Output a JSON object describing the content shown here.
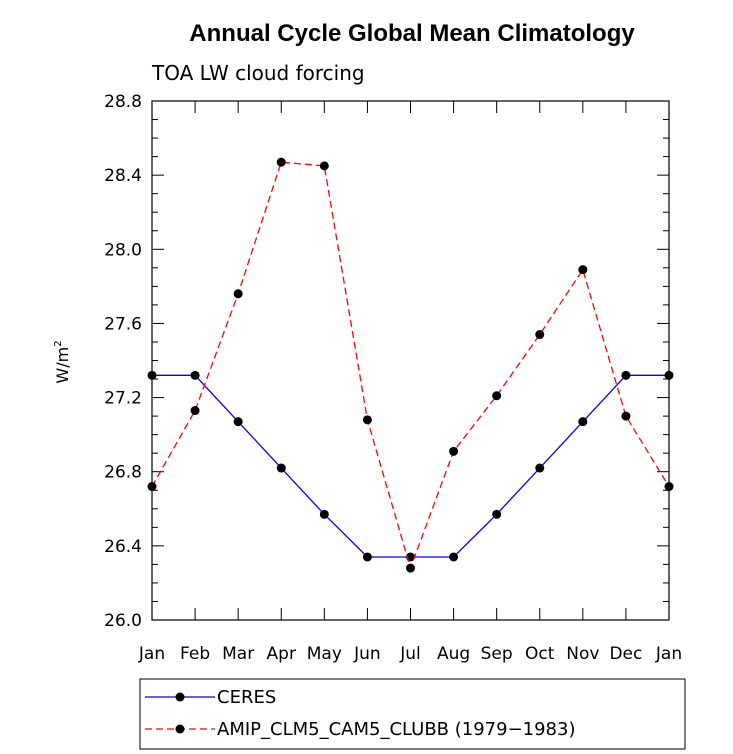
{
  "chart_data": {
    "type": "line",
    "title": "Annual Cycle Global Mean Climatology",
    "subtitle": "TOA LW cloud forcing",
    "xlabel": "",
    "ylabel": "W/m",
    "ylabel_superscript": "2",
    "categories": [
      "Jan",
      "Feb",
      "Mar",
      "Apr",
      "May",
      "Jun",
      "Jul",
      "Aug",
      "Sep",
      "Oct",
      "Nov",
      "Dec",
      "Jan"
    ],
    "ylim": [
      26.0,
      28.8
    ],
    "yticks": [
      "26.0",
      "26.4",
      "26.8",
      "27.2",
      "27.6",
      "28.0",
      "28.4",
      "28.8"
    ],
    "series": [
      {
        "name": "CERES",
        "color": "#0000ff",
        "dash": "solid",
        "values": [
          27.32,
          27.32,
          27.07,
          26.82,
          26.57,
          26.34,
          26.34,
          26.34,
          26.57,
          26.82,
          27.07,
          27.32,
          27.32
        ]
      },
      {
        "name": "AMIP_CLM5_CAM5_CLUBB (1979−1983)",
        "color": "#ff0000",
        "dash": "dashed",
        "values": [
          26.72,
          27.13,
          27.76,
          28.47,
          28.45,
          27.08,
          26.28,
          26.91,
          27.21,
          27.54,
          27.89,
          27.1,
          26.72
        ]
      }
    ],
    "grid": false,
    "legend_position": "bottom"
  }
}
